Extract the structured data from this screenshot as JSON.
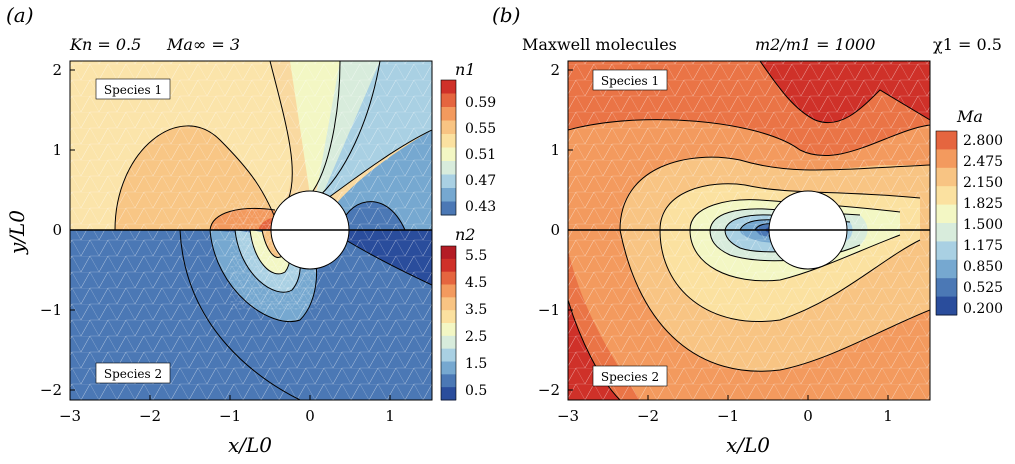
{
  "colors": {
    "scale": [
      "#2a4d9c",
      "#4b78b5",
      "#76a8d0",
      "#a9d0e3",
      "#d8ecdc",
      "#f3f7c4",
      "#fbe1a0",
      "#f8c483",
      "#f39a5e",
      "#e5653f",
      "#cf3129",
      "#b41c25"
    ],
    "circle": "#ffffff",
    "mesh": "#ffffff"
  },
  "panel_a": {
    "label": "(a)",
    "caption_kn": "Kn = 0.5",
    "caption_ma": "Ma∞ = 3",
    "region_top": "Species 1",
    "region_bottom": "Species 2",
    "xlabel": "x/L0",
    "ylabel": "y/L0",
    "xticks": [
      "−3",
      "−2",
      "−1",
      "0",
      "1"
    ],
    "yticks": [
      "2",
      "1",
      "0",
      "−1",
      "−2"
    ],
    "legend_top_title": "n1",
    "legend_top_ticks": [
      "0.59",
      "0.55",
      "0.51",
      "0.47",
      "0.43"
    ],
    "legend_bottom_title": "n2",
    "legend_bottom_ticks": [
      "5.5",
      "4.5",
      "3.5",
      "2.5",
      "1.5",
      "0.5"
    ]
  },
  "panel_b": {
    "label": "(b)",
    "caption_model": "Maxwell molecules",
    "caption_mass": "m2/m1 = 1000",
    "caption_chi": "χ1 = 0.5",
    "region_top": "Species 1",
    "region_bottom": "Species 2",
    "xlabel": "x/L0",
    "xticks": [
      "−3",
      "−2",
      "−1",
      "0",
      "1"
    ],
    "yticks": [
      "2",
      "1",
      "0",
      "−1",
      "−2"
    ],
    "legend_title": "Ma",
    "legend_ticks": [
      "2.800",
      "2.475",
      "2.150",
      "1.825",
      "1.500",
      "1.175",
      "0.850",
      "0.525",
      "0.200"
    ]
  },
  "chart_data": [
    {
      "type": "heatmap",
      "title": "",
      "xlabel": "x/L0",
      "ylabel": "y/L0",
      "xlim": [
        -3,
        1.5
      ],
      "ylim": [
        -2.1,
        2.1
      ],
      "annotations": [
        "Kn = 0.5",
        "Ma∞ = 3",
        "Species 1",
        "Species 2"
      ],
      "series": [
        {
          "name": "n1",
          "region": "y > 0",
          "colorbar_ticks": [
            0.59,
            0.55,
            0.51,
            0.47,
            0.43
          ]
        },
        {
          "name": "n2",
          "region": "y < 0",
          "colorbar_ticks": [
            5.5,
            4.5,
            3.5,
            2.5,
            1.5,
            0.5
          ]
        }
      ],
      "obstacle": {
        "shape": "cylinder",
        "center": [
          0,
          0
        ],
        "radius": 0.5
      }
    },
    {
      "type": "heatmap",
      "title": "",
      "xlabel": "x/L0",
      "ylabel": "y/L0",
      "xlim": [
        -3,
        1.5
      ],
      "ylim": [
        -2.1,
        2.1
      ],
      "annotations": [
        "Maxwell molecules",
        "m2/m1 = 1000",
        "χ1 = 0.5",
        "Species 1",
        "Species 2"
      ],
      "series": [
        {
          "name": "Ma",
          "colorbar_ticks": [
            2.8,
            2.475,
            2.15,
            1.825,
            1.5,
            1.175,
            0.85,
            0.525,
            0.2
          ]
        }
      ],
      "obstacle": {
        "shape": "cylinder",
        "center": [
          0,
          0
        ],
        "radius": 0.5
      }
    }
  ]
}
